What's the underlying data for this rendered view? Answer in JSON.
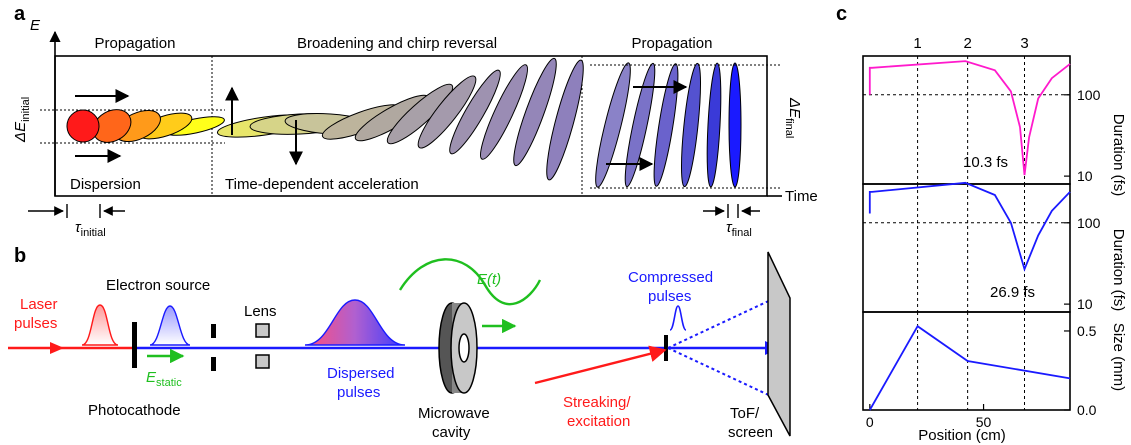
{
  "panels": {
    "a": "a",
    "b": "b",
    "c": "c"
  },
  "panel_a": {
    "e_axis": "E",
    "time_axis": "Time",
    "sec1_title": "Propagation",
    "sec2_title": "Broadening and chirp reversal",
    "sec3_title": "Propagation",
    "sec1_caption": "Dispersion",
    "sec2_caption": "Time-dependent acceleration",
    "delta_e_initial_sym": "ΔE",
    "delta_e_initial_sub": "initial",
    "delta_e_final_sym": "ΔE",
    "delta_e_final_sub": "final",
    "tau_initial_sym": "τ",
    "tau_initial_sub": "initial",
    "tau_final_sym": "τ",
    "tau_final_sub": "final"
  },
  "panel_b": {
    "laser_line1": "Laser",
    "laser_line2": "pulses",
    "electron_source": "Electron source",
    "lens": "Lens",
    "e_static_sym": "E",
    "e_static_sub": "static",
    "photocathode": "Photocathode",
    "dispersed_line1": "Dispersed",
    "dispersed_line2": "pulses",
    "et_label": "E(t)",
    "microwave_line1": "Microwave",
    "microwave_line2": "cavity",
    "compressed_line1": "Compressed",
    "compressed_line2": "pulses",
    "streaking_line1": "Streaking/",
    "streaking_line2": "excitation",
    "tof_line1": "ToF/",
    "tof_line2": "screen"
  },
  "panel_c": {
    "top_ticks": [
      "1",
      "2",
      "3"
    ],
    "ylabel_top": "Duration (fs)",
    "ylabel_mid": "Duration (fs)",
    "ylabel_bot": "Size (mm)",
    "xlabel": "Position (cm)",
    "min_top": "10.3 fs",
    "min_mid": "26.9 fs",
    "colors": {
      "top": "#ff1acc",
      "mid": "#1a1aff",
      "bot": "#1a1aff"
    }
  },
  "chart_data": [
    {
      "type": "line",
      "xlabel": "",
      "ylabel": "Duration (fs)",
      "yscale": "log",
      "ylim": [
        8,
        300
      ],
      "xlim": [
        -3,
        88
      ],
      "yticks": [
        "10",
        "100"
      ],
      "annotation": "10.3 fs",
      "series": [
        {
          "x": [
            0,
            0,
            1,
            42,
            55,
            62,
            66,
            68,
            70,
            74,
            80,
            88
          ],
          "y": [
            100,
            215,
            215,
            260,
            200,
            110,
            40,
            10.3,
            30,
            90,
            160,
            240
          ]
        }
      ]
    },
    {
      "type": "line",
      "xlabel": "",
      "ylabel": "Duration (fs)",
      "yscale": "log",
      "ylim": [
        8,
        300
      ],
      "xlim": [
        -3,
        88
      ],
      "yticks": [
        "10",
        "100"
      ],
      "annotation": "26.9 fs",
      "series": [
        {
          "x": [
            0,
            0,
            1,
            42,
            55,
            62,
            68,
            74,
            80,
            88
          ],
          "y": [
            130,
            240,
            240,
            310,
            220,
            100,
            26.9,
            70,
            140,
            240
          ]
        }
      ]
    },
    {
      "type": "line",
      "xlabel": "Position (cm)",
      "ylabel": "Size (mm)",
      "ylim": [
        0,
        0.62
      ],
      "xlim": [
        -3,
        88
      ],
      "xticks": [
        "0",
        "50"
      ],
      "yticks": [
        "0.0",
        "0.5"
      ],
      "series": [
        {
          "x": [
            0,
            21,
            43,
            88
          ],
          "y": [
            0,
            0.53,
            0.31,
            0.2
          ]
        }
      ]
    }
  ]
}
